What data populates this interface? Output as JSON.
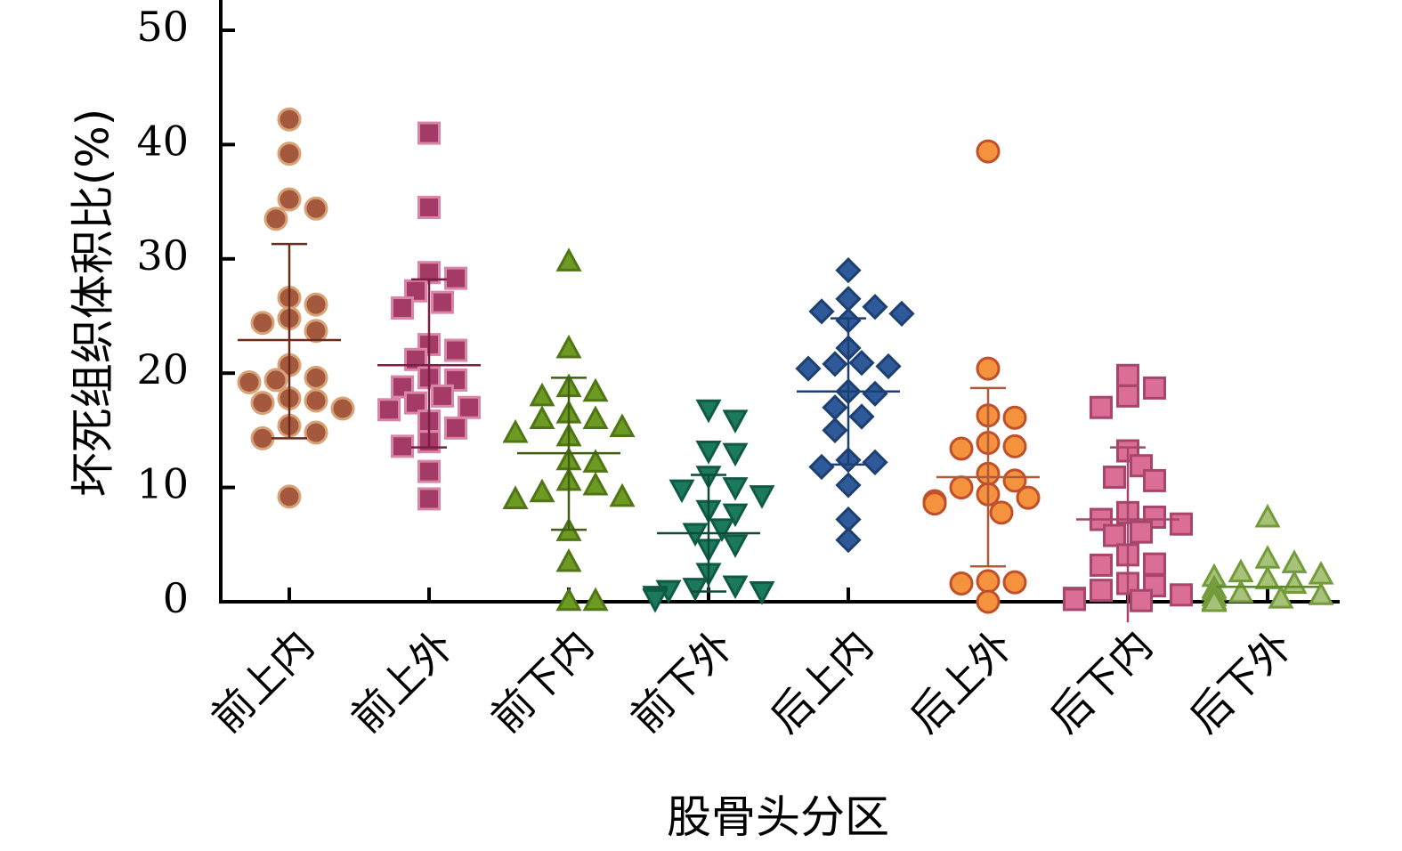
{
  "chart_data": {
    "type": "scatter",
    "xlabel": "股骨头分区",
    "ylabel": "坏死组织体积比(%)",
    "ylim": [
      0,
      50
    ],
    "yticks": [
      0,
      10,
      20,
      30,
      40,
      50
    ],
    "categories": [
      "前上内",
      "前上外",
      "前下内",
      "前下外",
      "后上内",
      "后上外",
      "后下内",
      "后下外"
    ],
    "series": [
      {
        "category": "前上内",
        "marker": "circle",
        "fill": "#A4593E",
        "stroke": "#D8A277",
        "line": "#6B2A1C",
        "mean": 22.9,
        "sd_low": 14.3,
        "sd_high": 31.3,
        "points": [
          42.2,
          39.2,
          35.2,
          34.4,
          33.5,
          26.6,
          26.0,
          24.8,
          24.4,
          23.7,
          20.7,
          19.6,
          19.4,
          19.2,
          17.8,
          17.6,
          17.4,
          16.9,
          15.4,
          14.8,
          14.3,
          9.2
        ]
      },
      {
        "category": "前上外",
        "marker": "square",
        "fill": "#A33B66",
        "stroke": "#D985A5",
        "line": "#7A1E45",
        "mean": 20.7,
        "sd_low": 13.5,
        "sd_high": 28.2,
        "points": [
          41.0,
          34.5,
          28.8,
          28.3,
          27.2,
          26.2,
          25.7,
          22.5,
          22.0,
          21.2,
          19.6,
          19.4,
          18.8,
          18.0,
          17.4,
          17.0,
          16.8,
          15.8,
          15.2,
          14.0,
          13.6,
          11.4,
          9.0
        ]
      },
      {
        "category": "前下内",
        "marker": "triangle-up",
        "fill": "#6C9A22",
        "stroke": "#4F7515",
        "line": "#3F5E10",
        "mean": 13.0,
        "sd_low": 6.3,
        "sd_high": 19.6,
        "points": [
          29.8,
          22.2,
          18.8,
          18.4,
          18.0,
          16.5,
          16.0,
          16.0,
          15.3,
          14.8,
          14.5,
          12.4,
          12.2,
          10.6,
          10.2,
          9.6,
          9.2,
          9.0,
          6.2,
          3.5,
          0.1,
          0.1
        ]
      },
      {
        "category": "前下外",
        "marker": "triangle-down",
        "fill": "#1B7A5E",
        "stroke": "#0F5A45",
        "line": "#0F4A38",
        "mean": 6.0,
        "sd_low": 0.9,
        "sd_high": 11.1,
        "points": [
          16.8,
          15.9,
          13.2,
          13.0,
          11.0,
          10.0,
          9.8,
          9.3,
          8.0,
          7.7,
          6.4,
          6.0,
          5.0,
          4.6,
          2.5,
          1.4,
          1.2,
          1.0,
          0.9,
          0.5,
          0.3,
          0.2
        ]
      },
      {
        "category": "后上内",
        "marker": "diamond",
        "fill": "#2E5A9A",
        "stroke": "#1D3F72",
        "line": "#1D3F72",
        "mean": 18.4,
        "sd_low": 12.0,
        "sd_high": 24.8,
        "points": [
          29.0,
          26.5,
          25.8,
          25.4,
          25.2,
          24.6,
          22.2,
          20.9,
          20.8,
          20.6,
          20.4,
          18.4,
          18.2,
          17.0,
          16.2,
          15.0,
          12.4,
          12.2,
          11.8,
          10.2,
          7.2,
          5.4
        ]
      },
      {
        "category": "后上外",
        "marker": "circle",
        "fill": "#F5923E",
        "stroke": "#C0502A",
        "line": "#B05A3C",
        "mean": 10.9,
        "sd_low": 3.1,
        "sd_high": 18.7,
        "points": [
          39.4,
          20.4,
          16.3,
          16.1,
          13.9,
          13.6,
          13.4,
          11.2,
          10.6,
          10.0,
          9.4,
          9.1,
          8.8,
          8.6,
          8.6,
          7.8,
          1.8,
          1.7,
          1.6,
          0.0
        ]
      },
      {
        "category": "后下内",
        "marker": "square",
        "fill": "#DB6E96",
        "stroke": "#A8456C",
        "line": "#A8456C",
        "mean": 7.2,
        "sd_low": -1.8,
        "sd_high": 13.5,
        "points": [
          19.8,
          18.7,
          18.0,
          17.0,
          13.2,
          11.9,
          10.9,
          10.6,
          7.8,
          7.4,
          7.2,
          6.8,
          6.1,
          5.8,
          4.1,
          3.3,
          3.2,
          1.6,
          1.4,
          1.0,
          0.6,
          0.3,
          0.2,
          0.1
        ]
      },
      {
        "category": "后下外",
        "marker": "triangle-up",
        "fill": "#A8C27A",
        "stroke": "#739B3A",
        "line": "#5A8A2A",
        "mean": 1.3,
        "sd_low": 1.3,
        "sd_high": 1.3,
        "points": [
          7.4,
          3.8,
          3.4,
          2.6,
          2.4,
          2.2,
          2.0,
          1.6,
          1.2,
          1.0,
          0.8,
          0.6,
          0.5,
          0.3,
          0.2,
          0.1,
          0.0,
          0.0
        ]
      }
    ]
  }
}
